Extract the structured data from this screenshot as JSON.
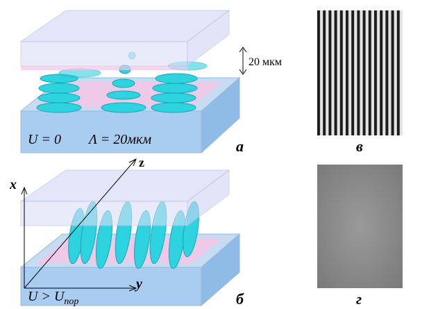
{
  "panel_a": {
    "thickness_label": "20 мкм",
    "voltage_label": "U = 0",
    "period_label": "Λ = 20мкм",
    "panel_letter": "а"
  },
  "panel_b": {
    "axis_x": "x",
    "axis_y": "y",
    "axis_z": "z",
    "voltage_label": {
      "main": "U > U",
      "subscript": "пор"
    },
    "panel_letter": "б"
  },
  "panel_v": {
    "panel_letter": "в"
  },
  "panel_g": {
    "panel_letter": "г"
  }
}
